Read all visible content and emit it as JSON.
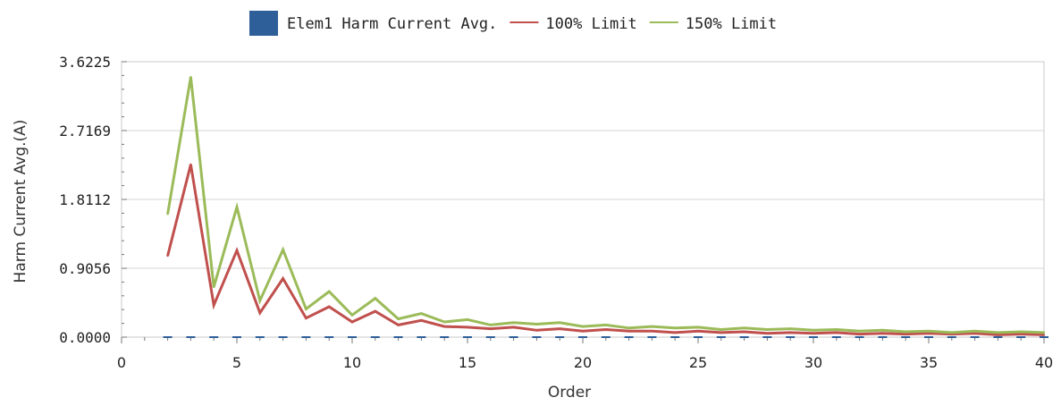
{
  "chart_data": {
    "type": "line",
    "xlabel": "Order",
    "ylabel": "Harm Current Avg.(A)",
    "xlim": [
      0,
      40
    ],
    "ylim": [
      0,
      3.6225
    ],
    "xticks": [
      0,
      5,
      10,
      15,
      20,
      25,
      30,
      35,
      40
    ],
    "yticks": [
      "0.0000",
      "0.9056",
      "1.8112",
      "2.7169",
      "3.6225"
    ],
    "grid": true,
    "legend_position": "top-center",
    "series": [
      {
        "name": "Elem1 Harm Current Avg.",
        "kind": "bar",
        "color": "#2f5f99",
        "x": [
          2,
          3,
          4,
          5,
          6,
          7,
          8,
          9,
          10,
          11,
          12,
          13,
          14,
          15,
          16,
          17,
          18,
          19,
          20,
          21,
          22,
          23,
          24,
          25,
          26,
          27,
          28,
          29,
          30,
          31,
          32,
          33,
          34,
          35,
          36,
          37,
          38,
          39,
          40
        ],
        "values": [
          0,
          0,
          0,
          0,
          0,
          0,
          0,
          0,
          0,
          0,
          0,
          0,
          0,
          0,
          0,
          0,
          0,
          0,
          0,
          0,
          0,
          0,
          0,
          0,
          0,
          0,
          0,
          0,
          0,
          0,
          0,
          0,
          0,
          0,
          0,
          0,
          0,
          0,
          0
        ]
      },
      {
        "name": "100% Limit",
        "kind": "line",
        "color": "#c0504d",
        "x": [
          2,
          3,
          4,
          5,
          6,
          7,
          8,
          9,
          10,
          11,
          12,
          13,
          14,
          15,
          16,
          17,
          18,
          19,
          20,
          21,
          22,
          23,
          24,
          25,
          26,
          27,
          28,
          29,
          30,
          31,
          32,
          33,
          34,
          35,
          36,
          37,
          38,
          39,
          40
        ],
        "values": [
          1.07,
          2.27,
          0.42,
          1.14,
          0.32,
          0.77,
          0.25,
          0.4,
          0.2,
          0.34,
          0.16,
          0.22,
          0.14,
          0.13,
          0.11,
          0.13,
          0.09,
          0.11,
          0.08,
          0.1,
          0.08,
          0.08,
          0.06,
          0.08,
          0.06,
          0.07,
          0.05,
          0.06,
          0.05,
          0.06,
          0.04,
          0.05,
          0.04,
          0.05,
          0.04,
          0.05,
          0.03,
          0.04,
          0.03
        ]
      },
      {
        "name": "150% Limit",
        "kind": "line",
        "color": "#9bbb59",
        "x": [
          2,
          3,
          4,
          5,
          6,
          7,
          8,
          9,
          10,
          11,
          12,
          13,
          14,
          15,
          16,
          17,
          18,
          19,
          20,
          21,
          22,
          23,
          24,
          25,
          26,
          27,
          28,
          29,
          30,
          31,
          32,
          33,
          34,
          35,
          36,
          37,
          38,
          39,
          40
        ],
        "values": [
          1.62,
          3.42,
          0.66,
          1.71,
          0.48,
          1.15,
          0.37,
          0.6,
          0.29,
          0.51,
          0.24,
          0.31,
          0.2,
          0.23,
          0.16,
          0.19,
          0.17,
          0.19,
          0.14,
          0.16,
          0.12,
          0.14,
          0.12,
          0.13,
          0.1,
          0.12,
          0.1,
          0.11,
          0.09,
          0.1,
          0.08,
          0.09,
          0.07,
          0.08,
          0.06,
          0.08,
          0.06,
          0.07,
          0.06
        ]
      }
    ]
  }
}
